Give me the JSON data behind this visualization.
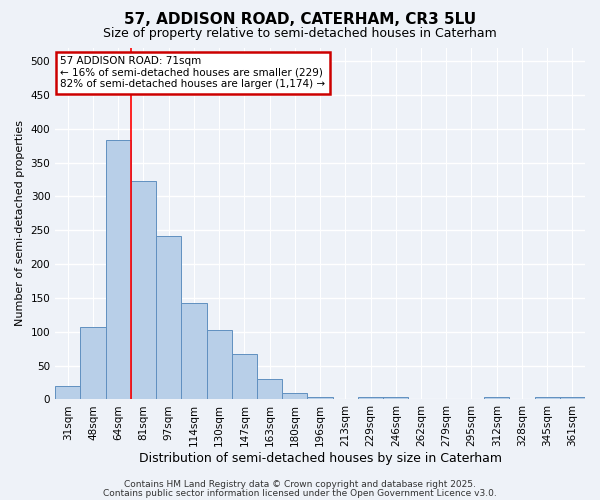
{
  "title1": "57, ADDISON ROAD, CATERHAM, CR3 5LU",
  "title2": "Size of property relative to semi-detached houses in Caterham",
  "xlabel": "Distribution of semi-detached houses by size in Caterham",
  "ylabel": "Number of semi-detached properties",
  "categories": [
    "31sqm",
    "48sqm",
    "64sqm",
    "81sqm",
    "97sqm",
    "114sqm",
    "130sqm",
    "147sqm",
    "163sqm",
    "180sqm",
    "196sqm",
    "213sqm",
    "229sqm",
    "246sqm",
    "262sqm",
    "279sqm",
    "295sqm",
    "312sqm",
    "328sqm",
    "345sqm",
    "361sqm"
  ],
  "values": [
    20,
    107,
    383,
    323,
    241,
    143,
    102,
    67,
    30,
    9,
    4,
    0,
    4,
    4,
    0,
    0,
    0,
    4,
    0,
    4,
    4
  ],
  "bar_color": "#b8cfe8",
  "bar_edge_color": "#6090c0",
  "ylim": [
    0,
    520
  ],
  "yticks": [
    0,
    50,
    100,
    150,
    200,
    250,
    300,
    350,
    400,
    450,
    500
  ],
  "red_line_x": 2.5,
  "annotation_text": "57 ADDISON ROAD: 71sqm\n← 16% of semi-detached houses are smaller (229)\n82% of semi-detached houses are larger (1,174) →",
  "annotation_box_color": "#ffffff",
  "annotation_box_edge": "#cc0000",
  "footer1": "Contains HM Land Registry data © Crown copyright and database right 2025.",
  "footer2": "Contains public sector information licensed under the Open Government Licence v3.0.",
  "bg_color": "#eef2f8",
  "grid_color": "#ffffff",
  "title_fontsize": 11,
  "subtitle_fontsize": 9,
  "ylabel_fontsize": 8,
  "xlabel_fontsize": 9,
  "tick_fontsize": 7.5,
  "footer_fontsize": 6.5
}
